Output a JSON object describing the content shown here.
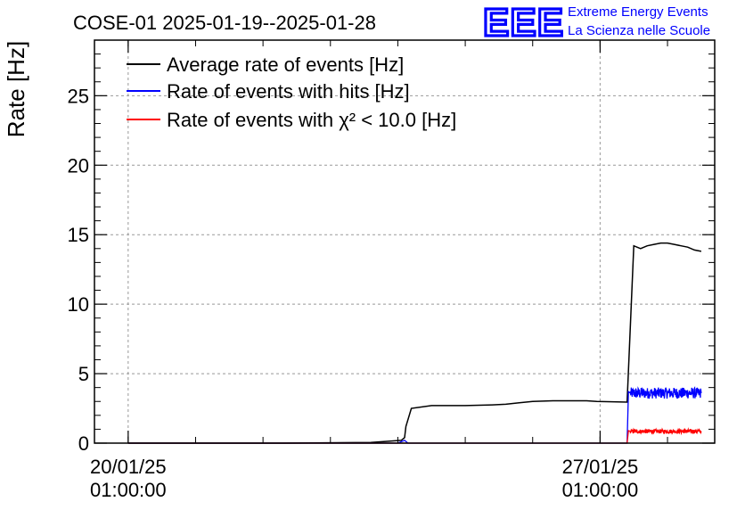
{
  "chart_data": {
    "type": "line",
    "title": "COSE-01 2025-01-19--2025-01-28",
    "logo": {
      "text": "EEE",
      "line1": "Extreme Energy Events",
      "line2": "La Scienza nelle Scuole"
    },
    "ylabel": "Rate [Hz]",
    "xlabel": "",
    "ylim": [
      0,
      29
    ],
    "xlim_days": [
      -0.5,
      8.7
    ],
    "yticks": [
      0,
      5,
      10,
      15,
      20,
      25
    ],
    "yticklabels": [
      "0",
      "5",
      "10",
      "15",
      "20",
      "25"
    ],
    "xticks": [
      {
        "day": 0,
        "line1": "20/01/25",
        "line2": "01:00:00"
      },
      {
        "day": 7,
        "line1": "27/01/25",
        "line2": "01:00:00"
      }
    ],
    "grid": true,
    "legend_position": "top-left",
    "series": [
      {
        "name": "Average rate of events [Hz]",
        "color": "#000000",
        "x": [
          0.0,
          2.3,
          3.6,
          4.05,
          4.1,
          4.12,
          4.2,
          4.5,
          4.8,
          5.0,
          5.4,
          5.6,
          5.8,
          6.0,
          6.3,
          6.6,
          6.8,
          6.95,
          7.4,
          7.5,
          7.6,
          7.7,
          7.8,
          7.9,
          8.0,
          8.1,
          8.2,
          8.3,
          8.4,
          8.5
        ],
        "y": [
          0.0,
          0.0,
          0.05,
          0.2,
          0.4,
          1.2,
          2.5,
          2.7,
          2.7,
          2.7,
          2.75,
          2.8,
          2.9,
          3.0,
          3.05,
          3.05,
          3.05,
          3.0,
          2.95,
          14.2,
          14.0,
          14.2,
          14.3,
          14.4,
          14.4,
          14.3,
          14.2,
          14.1,
          13.9,
          13.8
        ]
      },
      {
        "name": "Rate of events with hits [Hz]",
        "color": "#0000ff",
        "x": [
          0.0,
          4.0,
          4.1,
          4.15,
          4.2,
          7.4,
          7.42,
          7.45,
          8.5
        ],
        "y": [
          0.0,
          0.0,
          0.2,
          0.0,
          0.0,
          0.0,
          3.7,
          3.6,
          3.6
        ],
        "noise": 0.4
      },
      {
        "name": "Rate of events with χ² < 10.0 [Hz]",
        "color": "#ff0000",
        "x": [
          0.0,
          7.4,
          7.42,
          7.45,
          8.5
        ],
        "y": [
          0.0,
          0.0,
          0.9,
          0.85,
          0.85
        ],
        "noise": 0.15
      }
    ]
  }
}
